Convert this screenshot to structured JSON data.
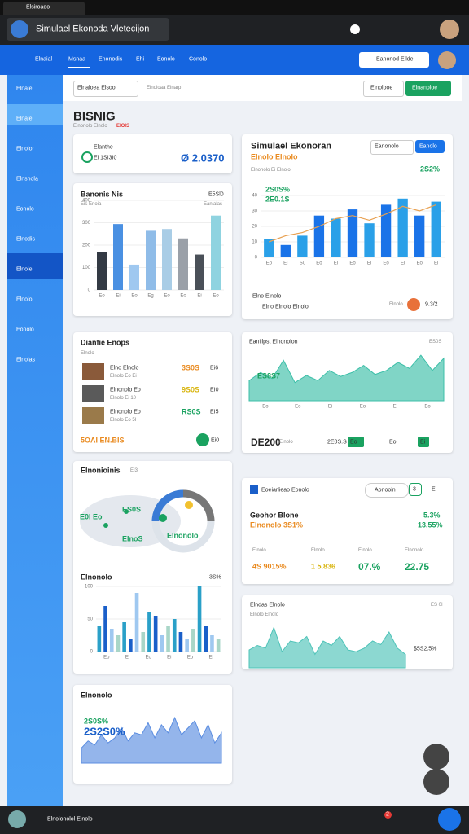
{
  "browser": {
    "tab": "Elsiroado"
  },
  "titlebar": {
    "title": "Simulael Ekonoda Vletecijon"
  },
  "nav": {
    "items": [
      "Elnaial",
      "Msnaa",
      "Enonodis",
      "Ehi",
      "Eonolo",
      "Conolo"
    ],
    "button": "Eanonod Ellde"
  },
  "sidebar": {
    "items": [
      "Elnale",
      "Elnale",
      "Elnolor",
      "Elnsnola",
      "Eonolo",
      "Elnodis",
      "Elnole",
      "Elnolo",
      "Eonolo",
      "Elnolas"
    ]
  },
  "toolbar": {
    "dropdown": "Elnaloea Elsoo",
    "label": "Elnoloaa Elnarp",
    "secondary": "Elnolooe",
    "primary": "Elnanoloe"
  },
  "header": {
    "title": "BISNIG",
    "subtitle": "Elnonolo Elnolo",
    "tag": "EIOIS"
  },
  "kpi": {
    "label": "Elanthe",
    "sub": "Ei 1SI3I0",
    "value": "Ø 2.0370"
  },
  "bar_card": {
    "type": "bar",
    "title": "Banonis Nis",
    "subtitle": "Eis Enoia",
    "corner": "E5Sl0",
    "corner_sub": "Eanlalas",
    "categories": [
      "Eo",
      "Ei",
      "Eo",
      "Eg",
      "Eo",
      "Eo",
      "Ei",
      "Eo"
    ],
    "values": [
      170,
      294,
      113,
      264,
      272,
      230,
      158,
      332
    ],
    "colors": [
      "#333a44",
      "#4a90e2",
      "#9fc8f0",
      "#8fbce8",
      "#a9cde6",
      "#9aa0a8",
      "#4a5058",
      "#8fd3e0"
    ],
    "ylim": [
      0,
      400
    ],
    "yticks": [
      0,
      100,
      200,
      300,
      400
    ],
    "grid": true
  },
  "combo_card": {
    "type": "combo",
    "title": "Simulael Ekonoran",
    "subtitle": "Elnolo Elnolo",
    "note": "Elnonolo Ei Elnolo",
    "change": "2S2%",
    "btn1": "Eanonolo",
    "btn2": "Eanolo",
    "categories": [
      "Eo",
      "Ei",
      "S0",
      "Eo",
      "Ei",
      "Eo",
      "Ei",
      "Eo",
      "Ei",
      "Eo",
      "Ei"
    ],
    "bars": [
      12,
      8,
      14,
      27,
      25,
      31,
      22,
      34,
      38,
      27,
      36
    ],
    "line": [
      10,
      14,
      16,
      20,
      25,
      27,
      24,
      28,
      33,
      30,
      34
    ],
    "bar_colors": [
      "#2aa0e8",
      "#1a73e8"
    ],
    "line_color": "#e8a050",
    "ylim": [
      0,
      40
    ],
    "yticks": [
      0,
      10,
      20,
      30,
      40
    ],
    "annotations": [
      "2S0S%",
      "2E0.1S"
    ],
    "footer_label": "Elno Elnolo",
    "footer_text": "Elno Elnolo Elnolo",
    "footer_right": "Elnolo",
    "footer_value": "9.3/2"
  },
  "list_card": {
    "title": "Dianfie Enops",
    "subtitle": "Elnolo",
    "rows": [
      {
        "name": "Elno Elnolo",
        "sub": "Elnolo Eo Ei",
        "value": "3S0S",
        "value2": "Ei6"
      },
      {
        "name": "Elnonolo Eo",
        "sub": "Elnolo Ei 10",
        "value": "9S0S",
        "value2": "EI0"
      },
      {
        "name": "Elnonolo Eo",
        "sub": "Elnolo Eo 5I",
        "value": "RS0S",
        "value2": "EI5"
      }
    ],
    "footer": "5OAI EN.BIS",
    "footer_value": "Ei0"
  },
  "area_card_e": {
    "type": "area",
    "title": "Eaniilpst Elnonolon",
    "corner": "ES0S",
    "badge": "ES8S7",
    "color": "#3cbfa8",
    "values": [
      20,
      28,
      22,
      40,
      18,
      25,
      20,
      30,
      24,
      28,
      35,
      26,
      30,
      38,
      32,
      45,
      30,
      42
    ],
    "ylim": [
      0,
      50
    ],
    "categories": [
      "Eo",
      "Eo",
      "Ei",
      "Eo",
      "Ei",
      "Eo"
    ],
    "footer": "DE200",
    "footer_sub": "Elnolo",
    "chips": [
      "2E0S.S",
      "Eo",
      "Eo",
      "Ei"
    ]
  },
  "map_card": {
    "title": "Elnonioinis",
    "badge": "EI3",
    "map_labels": [
      "ES0S",
      "E0I Eo",
      "ElnoS",
      "Elnonolo"
    ],
    "bars": {
      "type": "bar",
      "title": "Elnonolo",
      "corner": "3S%",
      "ylim": [
        0,
        100
      ],
      "yticks": [
        0,
        50,
        100
      ],
      "values": [
        40,
        70,
        35,
        25,
        45,
        20,
        90,
        30,
        60,
        55,
        25,
        40,
        50,
        30,
        20,
        35,
        100,
        40,
        25,
        20
      ],
      "colors": [
        "#2aa0c8",
        "#1a5fc9",
        "#9fc8f0",
        "#a9d6c8"
      ],
      "categories": [
        "Eo",
        "Ei",
        "Eo",
        "Ei",
        "Eo",
        "Ei"
      ]
    }
  },
  "stats_card": {
    "title": "Eoeiarlieao Eonolo",
    "button": "Aonooin",
    "btn_num": "3",
    "btn_tail": "EI",
    "label": "Geohor Blone",
    "sub": "Elnonolo 3S1%",
    "change1": "5.3%",
    "change2": "13.55%",
    "stats": [
      {
        "label": "Elnolo",
        "value": "4S 9015%"
      },
      {
        "label": "Elnolo",
        "value": "1 5.836"
      },
      {
        "label": "Elnolo",
        "value": "07.%"
      },
      {
        "label": "Elnonolo",
        "value": "22.75"
      }
    ]
  },
  "area_card_h": {
    "type": "area",
    "title": "Elndas Elnolo",
    "sub": "Elnolo Elnolo",
    "corner": "ES 0I",
    "value": "$5S2.5%",
    "color": "#4ec3b8",
    "values": [
      20,
      25,
      22,
      45,
      18,
      30,
      28,
      35,
      15,
      30,
      25,
      35,
      20,
      18,
      22,
      30,
      26,
      40,
      22,
      15
    ],
    "ylim": [
      0,
      50
    ]
  },
  "area_card_i": {
    "type": "area",
    "title": "Elnonolo",
    "labels": [
      "2S0S%",
      "2S2S0%"
    ],
    "color": "#5b8de0",
    "values": [
      15,
      22,
      18,
      28,
      20,
      25,
      35,
      22,
      30,
      28,
      40,
      25,
      38,
      30,
      45,
      28,
      35,
      42,
      25,
      38,
      20,
      30
    ],
    "ylim": [
      0,
      50
    ]
  },
  "bottombar": {
    "text": "Elnolonolol Elnolo",
    "badge": "2"
  }
}
